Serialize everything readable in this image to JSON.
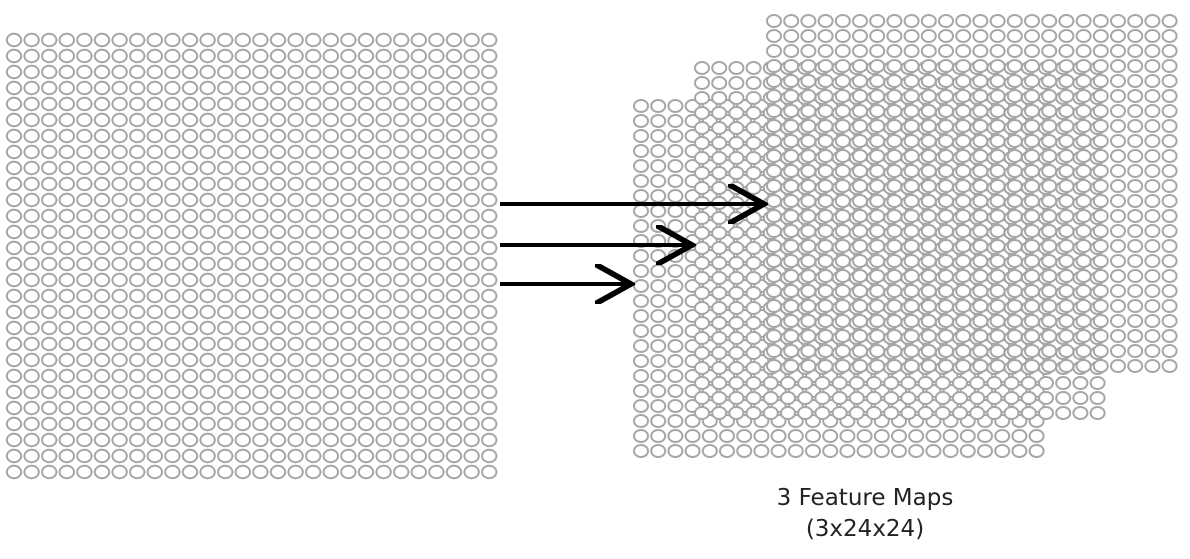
{
  "caption": {
    "title": "3 Feature Maps",
    "dims": "(3x24x24)"
  },
  "diagram": {
    "input_layer": {
      "columns": 28,
      "rows": 28
    },
    "feature_maps": [
      {
        "columns": 24,
        "rows": 24
      },
      {
        "columns": 24,
        "rows": 24
      },
      {
        "columns": 24,
        "rows": 24
      }
    ],
    "arrow_count": 3,
    "neuron_stroke_color": "#a6a6a6",
    "arrow_color": "#000000"
  }
}
